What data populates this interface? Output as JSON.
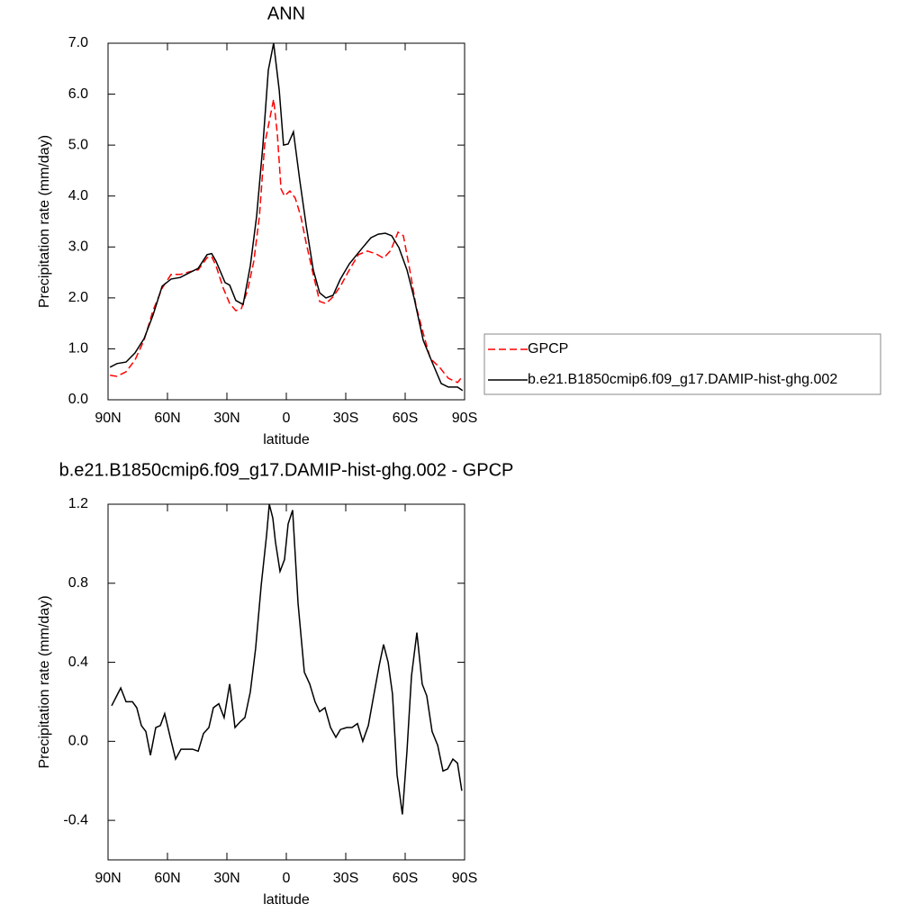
{
  "chart_data": [
    {
      "type": "line",
      "title": "ANN",
      "xlabel": "latitude",
      "ylabel": "Precipitation rate (mm/day)",
      "xlim": [
        90,
        -90
      ],
      "xticks": [
        {
          "value": 90,
          "label": "90N"
        },
        {
          "value": 60,
          "label": "60N"
        },
        {
          "value": 30,
          "label": "30N"
        },
        0,
        {
          "value": -30,
          "label": "30S"
        },
        {
          "value": -60,
          "label": "60S"
        },
        {
          "value": -90,
          "label": "90S"
        }
      ],
      "ylim": [
        0,
        7
      ],
      "yticks": [
        {
          "value": 0,
          "label": "0.0"
        },
        {
          "value": 1,
          "label": "1.0"
        },
        {
          "value": 2,
          "label": "2.0"
        },
        {
          "value": 3,
          "label": "3.0"
        },
        {
          "value": 4,
          "label": "4.0"
        },
        {
          "value": 5,
          "label": "5.0"
        },
        {
          "value": 6,
          "label": "6.0"
        },
        {
          "value": 7,
          "label": "7.0"
        }
      ],
      "legend": "right",
      "series": [
        {
          "name": "GPCP",
          "color": "#ff0000",
          "line_style": "dashed",
          "x": [
            89,
            85.5,
            80.9,
            76.4,
            71.8,
            67.3,
            62.7,
            58.2,
            53.6,
            49.1,
            44.5,
            40.0,
            37.7,
            35.5,
            31.8,
            28.6,
            25.5,
            22.7,
            19.5,
            16.4,
            13.6,
            10.9,
            8.2,
            6.4,
            4.5,
            2.7,
            0.9,
            -1.8,
            -4.5,
            -7.3,
            -10.0,
            -13.6,
            -16.8,
            -20.0,
            -23.6,
            -27.3,
            -31.8,
            -36.4,
            -40.9,
            -45.5,
            -49.1,
            -52.7,
            -56.4,
            -59.1,
            -62.3,
            -65.5,
            -69.1,
            -72.7,
            -77.3,
            -81.8,
            -86.4,
            -89
          ],
          "values": [
            0.48,
            0.46,
            0.55,
            0.78,
            1.17,
            1.75,
            2.19,
            2.46,
            2.46,
            2.51,
            2.55,
            2.79,
            2.81,
            2.63,
            2.19,
            1.89,
            1.75,
            1.79,
            2.16,
            2.72,
            3.6,
            5.02,
            5.55,
            5.9,
            5.2,
            4.14,
            4.0,
            4.1,
            3.96,
            3.6,
            3.08,
            2.46,
            1.93,
            1.89,
            2.02,
            2.23,
            2.55,
            2.85,
            2.92,
            2.86,
            2.78,
            2.93,
            3.29,
            3.22,
            2.55,
            1.84,
            1.31,
            0.81,
            0.64,
            0.42,
            0.34,
            0.46
          ]
        },
        {
          "name": "b.e21.B1850cmip6.f09_g17.DAMIP-hist-ghg.002",
          "color": "#000000",
          "line_style": "solid",
          "x": [
            89,
            85.5,
            80.9,
            76.4,
            71.8,
            67.3,
            62.7,
            58.2,
            53.6,
            49.1,
            44.5,
            40.0,
            37.7,
            35.5,
            30.9,
            28.6,
            25.5,
            21.8,
            18.2,
            15.0,
            11.8,
            9.1,
            6.4,
            3.6,
            1.4,
            -0.9,
            -3.6,
            -6.8,
            -10.0,
            -13.6,
            -16.8,
            -20.0,
            -23.6,
            -27.3,
            -31.8,
            -37.3,
            -42.7,
            -46.4,
            -50.0,
            -53.2,
            -56.8,
            -60.9,
            -64.5,
            -69.1,
            -73.6,
            -78.2,
            -81.8,
            -86.4,
            -89
          ],
          "values": [
            0.64,
            0.71,
            0.74,
            0.92,
            1.2,
            1.66,
            2.23,
            2.37,
            2.4,
            2.49,
            2.58,
            2.85,
            2.87,
            2.72,
            2.3,
            2.25,
            1.95,
            1.87,
            2.63,
            3.6,
            5.0,
            6.47,
            7.0,
            6.08,
            5.0,
            5.02,
            5.26,
            4.3,
            3.43,
            2.55,
            2.1,
            2.0,
            2.05,
            2.37,
            2.67,
            2.93,
            3.18,
            3.25,
            3.27,
            3.22,
            2.99,
            2.55,
            2.0,
            1.17,
            0.74,
            0.32,
            0.25,
            0.25,
            0.18
          ]
        }
      ]
    },
    {
      "type": "line",
      "title": "b.e21.B1850cmip6.f09_g17.DAMIP-hist-ghg.002 - GPCP",
      "xlabel": "latitude",
      "ylabel": "Precipitation rate (mm/day)",
      "xlim": [
        90,
        -90
      ],
      "xticks": [
        {
          "value": 90,
          "label": "90N"
        },
        {
          "value": 60,
          "label": "60N"
        },
        {
          "value": 30,
          "label": "30N"
        },
        0,
        {
          "value": -30,
          "label": "30S"
        },
        {
          "value": -60,
          "label": "60S"
        },
        {
          "value": -90,
          "label": "90S"
        }
      ],
      "ylim": [
        -0.6,
        1.2
      ],
      "yticks": [
        -0.4,
        {
          "value": 0,
          "label": "0.0"
        },
        0.4,
        0.8,
        1.2
      ],
      "series": [
        {
          "color": "#000000",
          "line_style": "solid",
          "x": [
            88.2,
            83.6,
            80.9,
            77.7,
            75.5,
            73.2,
            70.9,
            68.6,
            65.9,
            63.6,
            61.4,
            58.6,
            55.9,
            53.2,
            50.0,
            47.3,
            44.5,
            41.8,
            39.1,
            36.8,
            34.1,
            31.4,
            28.6,
            25.9,
            23.2,
            20.9,
            18.2,
            15.5,
            12.7,
            10.0,
            8.6,
            6.8,
            5.5,
            3.2,
            0.9,
            -0.9,
            -3.2,
            -5.9,
            -9.1,
            -11.8,
            -14.5,
            -16.8,
            -19.5,
            -22.3,
            -25.0,
            -27.3,
            -30.5,
            -33.2,
            -35.9,
            -38.6,
            -41.4,
            -44.1,
            -46.8,
            -49.1,
            -51.4,
            -53.6,
            -55.9,
            -58.6,
            -60.9,
            -63.2,
            -65.9,
            -68.6,
            -70.9,
            -73.6,
            -76.4,
            -79.1,
            -81.4,
            -84.1,
            -86.4,
            -88.6
          ],
          "values": [
            0.18,
            0.27,
            0.2,
            0.2,
            0.17,
            0.08,
            0.05,
            -0.07,
            0.07,
            0.08,
            0.14,
            0.02,
            -0.09,
            -0.04,
            -0.04,
            -0.04,
            -0.05,
            0.04,
            0.07,
            0.17,
            0.19,
            0.12,
            0.29,
            0.07,
            0.1,
            0.12,
            0.25,
            0.47,
            0.79,
            1.04,
            1.2,
            1.13,
            1.01,
            0.86,
            0.92,
            1.1,
            1.17,
            0.7,
            0.35,
            0.29,
            0.2,
            0.15,
            0.17,
            0.07,
            0.02,
            0.06,
            0.07,
            0.07,
            0.09,
            0.0,
            0.08,
            0.23,
            0.38,
            0.49,
            0.4,
            0.24,
            -0.17,
            -0.37,
            -0.05,
            0.33,
            0.55,
            0.29,
            0.23,
            0.05,
            -0.02,
            -0.15,
            -0.14,
            -0.09,
            -0.11,
            -0.25
          ]
        }
      ]
    }
  ]
}
